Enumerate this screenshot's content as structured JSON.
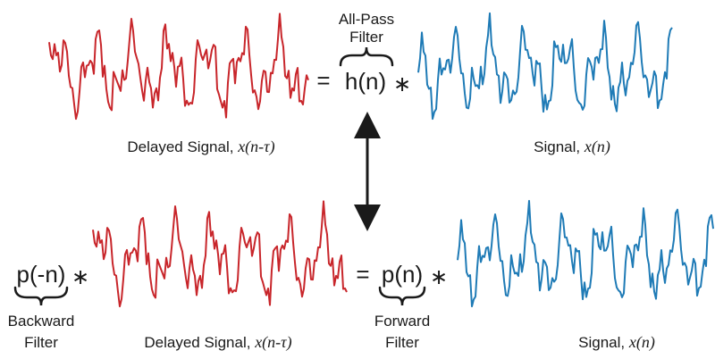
{
  "colors": {
    "delayed": "#c8262b",
    "signal": "#1f7bb6",
    "ink": "#1a1a1a"
  },
  "top": {
    "filter_name_line1": "All-Pass",
    "filter_name_line2": "Filter",
    "equals": "=",
    "h_term": "h(n)",
    "conv": "∗",
    "delayed_label": "Delayed Signal, ",
    "delayed_math": "x(n-τ)",
    "signal_label": "Signal, ",
    "signal_math": "x(n)"
  },
  "bottom": {
    "p_back": "p(-n)",
    "conv_left": "∗",
    "equals": "=",
    "p_fwd": "p(n)",
    "conv_right": "∗",
    "backward_line1": "Backward",
    "backward_line2": "Filter",
    "forward_line1": "Forward",
    "forward_line2": "Filter",
    "delayed_label": "Delayed Signal, ",
    "delayed_math": "x(n-τ)",
    "signal_label": "Signal, ",
    "signal_math": "x(n)"
  },
  "icons": {
    "arrow": "double-headed-vertical-arrow"
  }
}
